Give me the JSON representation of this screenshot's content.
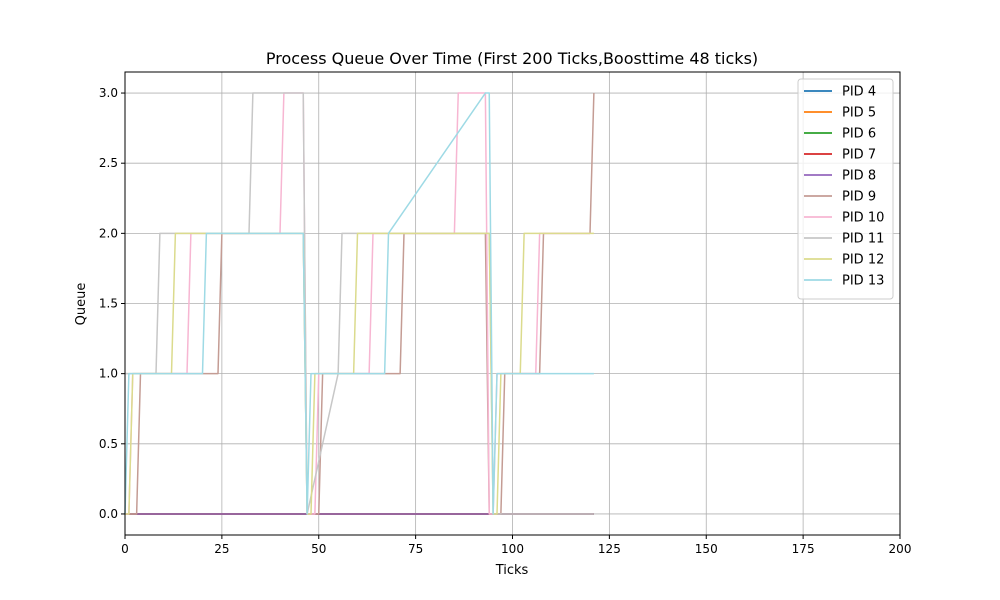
{
  "chart_data": {
    "type": "line",
    "title": "Process Queue Over Time (First 200 Ticks,Boosttime 48 ticks)",
    "xlabel": "Ticks",
    "ylabel": "Queue",
    "xlim": [
      0,
      200
    ],
    "ylim": [
      -0.15,
      3.15
    ],
    "xticks": [
      0,
      25,
      50,
      75,
      100,
      125,
      150,
      175,
      200
    ],
    "yticks": [
      0.0,
      0.5,
      1.0,
      1.5,
      2.0,
      2.5,
      3.0
    ],
    "xtick_labels": [
      "0",
      "25",
      "50",
      "75",
      "100",
      "125",
      "150",
      "175",
      "200"
    ],
    "ytick_labels": [
      "0.0",
      "0.5",
      "1.0",
      "1.5",
      "2.0",
      "2.5",
      "3.0"
    ],
    "grid": true,
    "legend_position": "top-right",
    "series": [
      {
        "name": "PID 4",
        "color": "#1f77b4",
        "x": [
          0,
          121
        ],
        "y": [
          0,
          0
        ]
      },
      {
        "name": "PID 5",
        "color": "#ff7f0e",
        "x": [
          0,
          121
        ],
        "y": [
          0,
          0
        ]
      },
      {
        "name": "PID 6",
        "color": "#2ca02c",
        "x": [
          0,
          121
        ],
        "y": [
          0,
          0
        ]
      },
      {
        "name": "PID 7",
        "color": "#d62728",
        "x": [
          0,
          121
        ],
        "y": [
          0,
          0
        ]
      },
      {
        "name": "PID 8",
        "color": "#9467bd",
        "x": [
          0,
          121
        ],
        "y": [
          0,
          0
        ]
      },
      {
        "name": "PID 9",
        "color": "#c49c94",
        "x": [
          0,
          3,
          4,
          20,
          24,
          25,
          46,
          47,
          50,
          51,
          71,
          72,
          93,
          94,
          97,
          98,
          107,
          108,
          120,
          121
        ],
        "y": [
          0,
          0,
          1,
          1,
          1,
          2,
          2,
          0,
          0,
          1,
          1,
          2,
          2,
          0,
          0,
          1,
          1,
          2,
          2,
          3
        ]
      },
      {
        "name": "PID 10",
        "color": "#f7b6d2",
        "x": [
          0,
          1,
          2,
          16,
          17,
          40,
          41,
          46,
          47,
          49,
          50,
          63,
          64,
          85,
          86,
          93,
          94,
          95,
          96,
          106,
          107,
          120
        ],
        "y": [
          0,
          0,
          1,
          1,
          2,
          2,
          3,
          3,
          0,
          0,
          1,
          1,
          2,
          2,
          3,
          3,
          0,
          0,
          1,
          1,
          2,
          2
        ]
      },
      {
        "name": "PID 11",
        "color": "#c7c7c7",
        "x": [
          0,
          8,
          9,
          32,
          33,
          46,
          47,
          55,
          56,
          94,
          95,
          121
        ],
        "y": [
          1,
          1,
          2,
          2,
          3,
          3,
          0,
          1,
          2,
          2,
          0,
          0
        ]
      },
      {
        "name": "PID 12",
        "color": "#dbdb8d",
        "x": [
          0,
          1,
          2,
          12,
          13,
          46,
          47,
          48,
          49,
          59,
          60,
          94,
          95,
          96,
          97,
          102,
          103,
          121
        ],
        "y": [
          0,
          0,
          1,
          1,
          2,
          2,
          0,
          0,
          1,
          1,
          2,
          2,
          0,
          0,
          1,
          1,
          2,
          2
        ]
      },
      {
        "name": "PID 13",
        "color": "#9edae5",
        "x": [
          0,
          1,
          20,
          21,
          46,
          47,
          48,
          67,
          68,
          93,
          94,
          95,
          96,
          121
        ],
        "y": [
          0,
          1,
          1,
          2,
          2,
          0,
          1,
          1,
          2,
          3,
          3,
          0,
          1,
          1
        ]
      }
    ]
  }
}
